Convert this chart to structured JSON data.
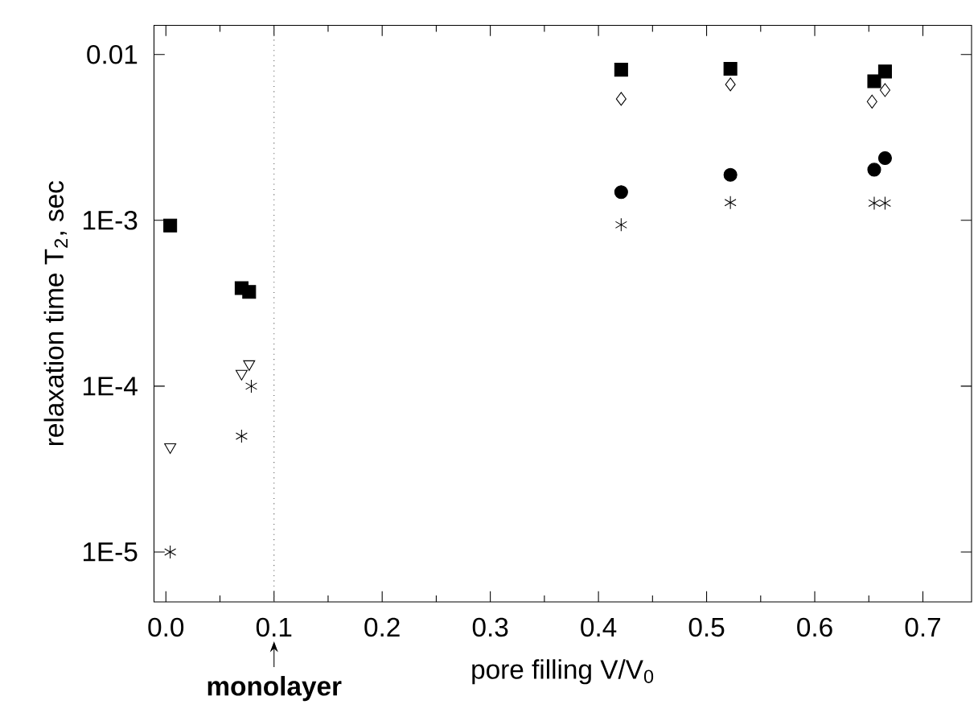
{
  "chart_data": {
    "type": "scatter",
    "xlabel": "pore filling V/V$_{0}$",
    "ylabel": "relaxation time T$_{2}$, sec",
    "log": "y",
    "xlim": [
      -0.011,
      0.745
    ],
    "ylim": [
      5e-06,
      0.015
    ],
    "xticks": [
      {
        "value": 0,
        "label": "0.0"
      },
      0.1,
      0.2,
      0.3,
      0.4,
      0.5,
      0.6,
      0.7
    ],
    "yticks": [
      {
        "value": 1e-05,
        "label": "1E-5"
      },
      {
        "value": 0.0001,
        "label": "1E-4"
      },
      {
        "value": 0.001,
        "label": "1E-3"
      },
      {
        "value": 0.01,
        "label": "0.01"
      }
    ],
    "grid": false,
    "ref_lines": [
      {
        "axis": "x",
        "value": 0.1,
        "color": "#555555",
        "line_style": "dotted"
      }
    ],
    "annotations": [
      "monolayer"
    ],
    "series": [
      {
        "color": "#000000",
        "marker": "square",
        "x": [
          0.004,
          0.07,
          0.077,
          0.421,
          0.522,
          0.655,
          0.665
        ],
        "values": [
          0.00093,
          0.00039,
          0.00037,
          0.0081,
          0.0082,
          0.0069,
          0.0079
        ]
      },
      {
        "color": "#000000",
        "marker": "triangle",
        "x": [
          0.004,
          0.07,
          0.077
        ],
        "values": [
          4.3e-05,
          0.000119,
          0.000136
        ]
      },
      {
        "color": "#000000",
        "marker": "cross",
        "x": [
          0.004,
          0.07,
          0.079,
          0.421,
          0.522,
          0.655,
          0.665
        ],
        "values": [
          1e-05,
          5e-05,
          0.0001,
          0.00094,
          0.00128,
          0.00127,
          0.00127
        ]
      },
      {
        "color": "#000000",
        "marker": "diamond",
        "x": [
          0.421,
          0.522,
          0.653,
          0.665
        ],
        "values": [
          0.0054,
          0.0066,
          0.0052,
          0.0061
        ]
      },
      {
        "color": "#000000",
        "marker": "circle",
        "x": [
          0.421,
          0.522,
          0.655,
          0.665
        ],
        "values": [
          0.00148,
          0.00188,
          0.00202,
          0.00237
        ]
      }
    ]
  }
}
